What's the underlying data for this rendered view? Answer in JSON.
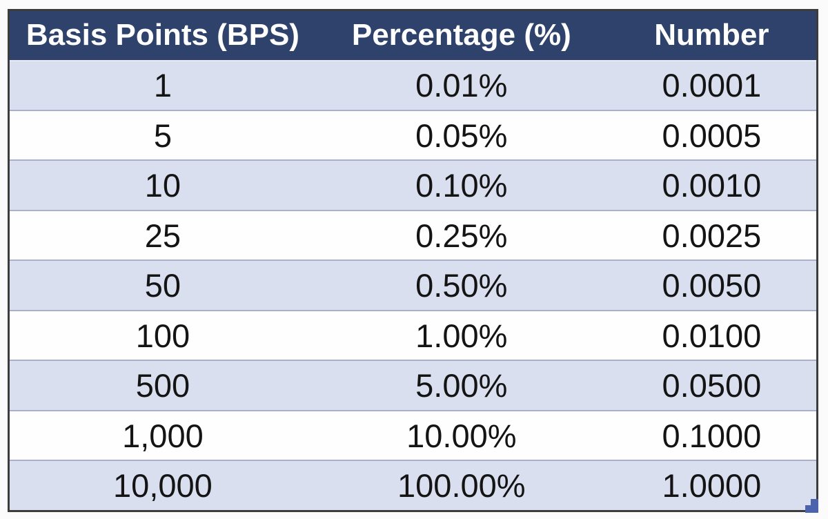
{
  "chart_data": {
    "type": "table",
    "columns": [
      "Basis Points (BPS)",
      "Percentage (%)",
      "Number"
    ],
    "rows": [
      [
        "1",
        "0.01%",
        "0.0001"
      ],
      [
        "5",
        "0.05%",
        "0.0005"
      ],
      [
        "10",
        "0.10%",
        "0.0010"
      ],
      [
        "25",
        "0.25%",
        "0.0025"
      ],
      [
        "50",
        "0.50%",
        "0.0050"
      ],
      [
        "100",
        "1.00%",
        "0.0100"
      ],
      [
        "500",
        "5.00%",
        "0.0500"
      ],
      [
        "1,000",
        "10.00%",
        "0.1000"
      ],
      [
        "10,000",
        "100.00%",
        "1.0000"
      ]
    ],
    "layout": {
      "grid": "horizontal-row-dividers",
      "banding": "alternating starting with shaded row",
      "column_alignment": [
        "center",
        "center",
        "center"
      ]
    }
  },
  "colors": {
    "page_bg": "#FBFBFB",
    "outer_border": "#3C3C3C",
    "header_bg": "#2E426B",
    "header_text": "#FFFFFF",
    "row_alt_bg": "#D9DFEE",
    "row_bg": "#FEFEFE",
    "divider": "#A9B0CB",
    "divider_light": "#E7EBF5",
    "text": "#141414",
    "corner_accent": "#4A63AC"
  },
  "icons": {
    "corner_accent": "stepped-square-accent"
  }
}
